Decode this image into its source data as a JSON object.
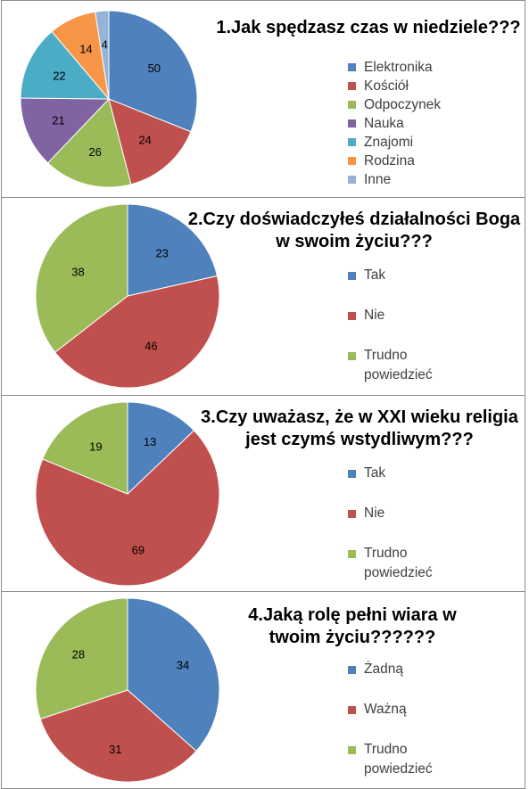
{
  "chart_data": [
    {
      "type": "pie",
      "title": "1.Jak spędzasz czas w niedziele???",
      "categories": [
        "Elektronika",
        "Kościół",
        "Odpoczynek",
        "Nauka",
        "Znajomi",
        "Rodzina",
        "Inne"
      ],
      "values": [
        50,
        24,
        26,
        21,
        22,
        14,
        4
      ],
      "colors": [
        "#4f81bd",
        "#c0504d",
        "#9bbb59",
        "#8064a2",
        "#4bacc6",
        "#f79646",
        "#95b3d7"
      ],
      "legend_position": "right"
    },
    {
      "type": "pie",
      "title": "2.Czy doświadczyłeś działalności Boga w swoim życiu???",
      "categories": [
        "Tak",
        "Nie",
        "Trudno powiedzieć"
      ],
      "values": [
        23,
        46,
        38
      ],
      "colors": [
        "#4f81bd",
        "#c0504d",
        "#9bbb59"
      ],
      "legend_position": "right"
    },
    {
      "type": "pie",
      "title": "3.Czy uważasz, że w XXI wieku religia jest czymś wstydliwym???",
      "categories": [
        "Tak",
        "Nie",
        "Trudno powiedzieć"
      ],
      "values": [
        13,
        69,
        19
      ],
      "colors": [
        "#4f81bd",
        "#c0504d",
        "#9bbb59"
      ],
      "legend_position": "right"
    },
    {
      "type": "pie",
      "title": "4.Jaką rolę pełni wiara w twoim życiu??????",
      "categories": [
        "Żadną",
        "Ważną",
        "Trudno powiedzieć"
      ],
      "values": [
        34,
        31,
        28
      ],
      "colors": [
        "#4f81bd",
        "#c0504d",
        "#9bbb59"
      ],
      "legend_position": "right"
    }
  ]
}
